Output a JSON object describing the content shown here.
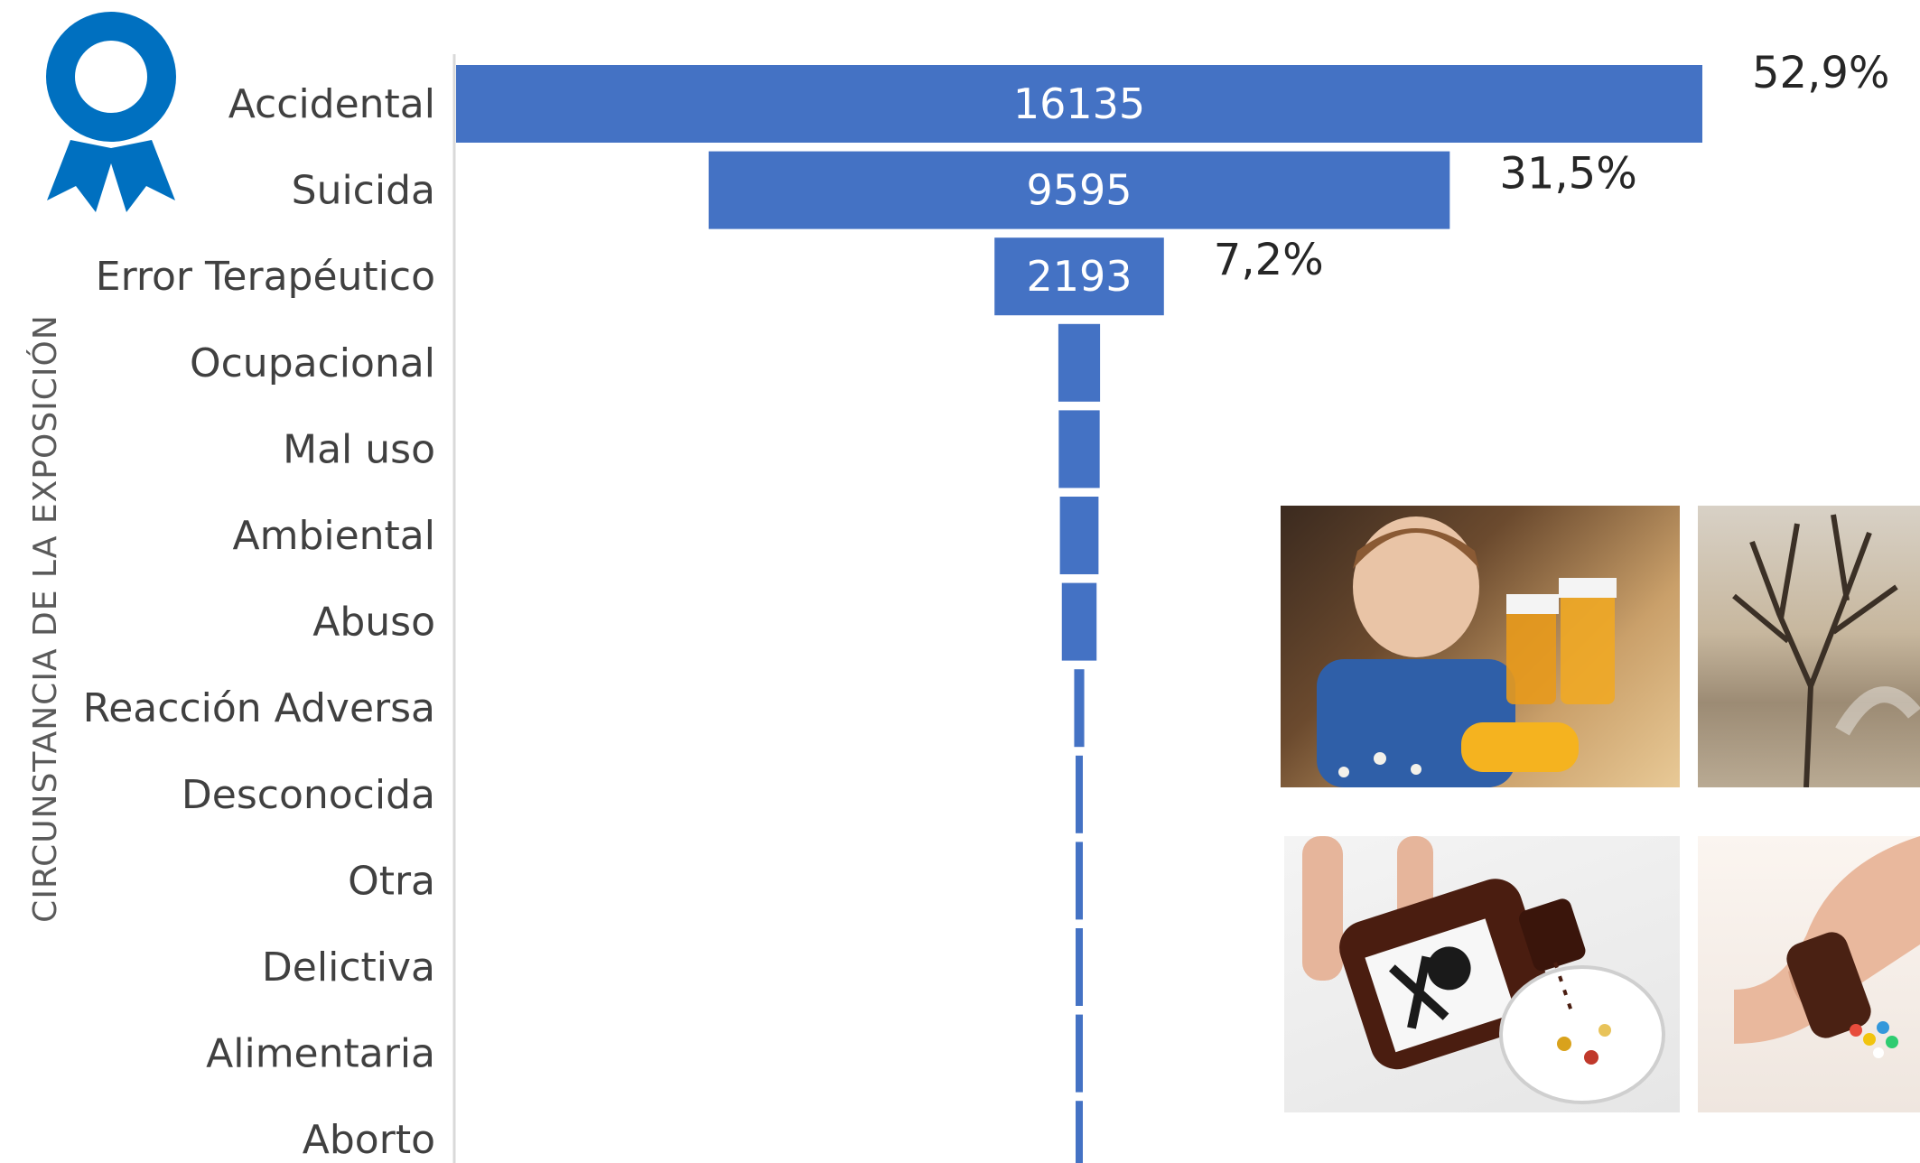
{
  "chart_data": {
    "type": "bar",
    "orientation": "horizontal-centered",
    "ylabel": "CIRCUNSTANCIA DE LA EXPOSICIÓN",
    "categories": [
      "Accidental",
      "Suicida",
      "Error Terapéutico",
      "Ocupacional",
      "Mal uso",
      "Ambiental",
      "Abuso",
      "Reacción Adversa",
      "Desconocida",
      "Otra",
      "Delictiva",
      "Alimentaria",
      "Aborto"
    ],
    "values": [
      16135,
      9595,
      2193,
      540,
      530,
      500,
      450,
      130,
      80,
      40,
      30,
      20,
      10
    ],
    "value_labels": [
      "16135",
      "9595",
      "2193",
      "",
      "",
      "",
      "",
      "",
      "",
      "",
      "",
      "",
      ""
    ],
    "percent_labels": [
      "52,9%",
      "31,5%",
      "7,2%",
      "",
      "",
      "",
      "",
      "",
      "",
      "",
      "",
      "",
      ""
    ],
    "bar_color": "#4472C4",
    "grid": false,
    "legend": "none"
  },
  "decor": {
    "ribbon_icon": "award-ribbon-icon",
    "ribbon_color": "#0070C0",
    "photos": [
      "child-with-pill-bottles-photo",
      "bare-tree-photo",
      "poison-bottle-pouring-photo",
      "hand-with-pills-photo"
    ]
  }
}
